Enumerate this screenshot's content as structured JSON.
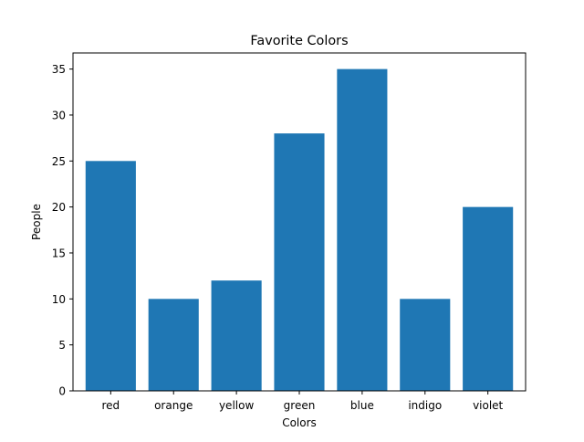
{
  "chart_data": {
    "type": "bar",
    "title": "Favorite Colors",
    "xlabel": "Colors",
    "ylabel": "People",
    "categories": [
      "red",
      "orange",
      "yellow",
      "green",
      "blue",
      "indigo",
      "violet"
    ],
    "values": [
      25,
      10,
      12,
      28,
      35,
      10,
      20
    ],
    "ylim": [
      0,
      36.75
    ],
    "yticks": [
      0,
      5,
      10,
      15,
      20,
      25,
      30,
      35
    ],
    "bar_color": "#1f77b4",
    "grid": false
  }
}
